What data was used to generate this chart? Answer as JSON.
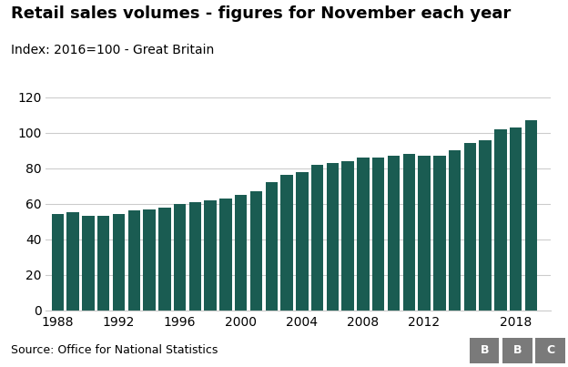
{
  "title": "Retail sales volumes - figures for November each year",
  "subtitle": "Index: 2016=100 - Great Britain",
  "source": "Source: Office for National Statistics",
  "bar_color": "#1a5c52",
  "background_color": "#ffffff",
  "years": [
    1988,
    1989,
    1990,
    1991,
    1992,
    1993,
    1994,
    1995,
    1996,
    1997,
    1998,
    1999,
    2000,
    2001,
    2002,
    2003,
    2004,
    2005,
    2006,
    2007,
    2008,
    2009,
    2010,
    2011,
    2012,
    2013,
    2014,
    2015,
    2016,
    2017,
    2018,
    2019
  ],
  "values": [
    54,
    55,
    53,
    53,
    54,
    56,
    57,
    58,
    60,
    61,
    62,
    63,
    65,
    67,
    72,
    76,
    78,
    82,
    83,
    84,
    86,
    86,
    87,
    88,
    87,
    87,
    90,
    94,
    96,
    102,
    103,
    107
  ],
  "ylim": [
    0,
    120
  ],
  "yticks": [
    0,
    20,
    40,
    60,
    80,
    100,
    120
  ],
  "xticks": [
    1988,
    1992,
    1996,
    2000,
    2004,
    2008,
    2012,
    2018
  ],
  "grid_color": "#cccccc",
  "title_fontsize": 13,
  "subtitle_fontsize": 10,
  "tick_fontsize": 10,
  "source_fontsize": 9,
  "bbc_box_color": "#7a7a7a",
  "bbc_text_color": "#ffffff"
}
